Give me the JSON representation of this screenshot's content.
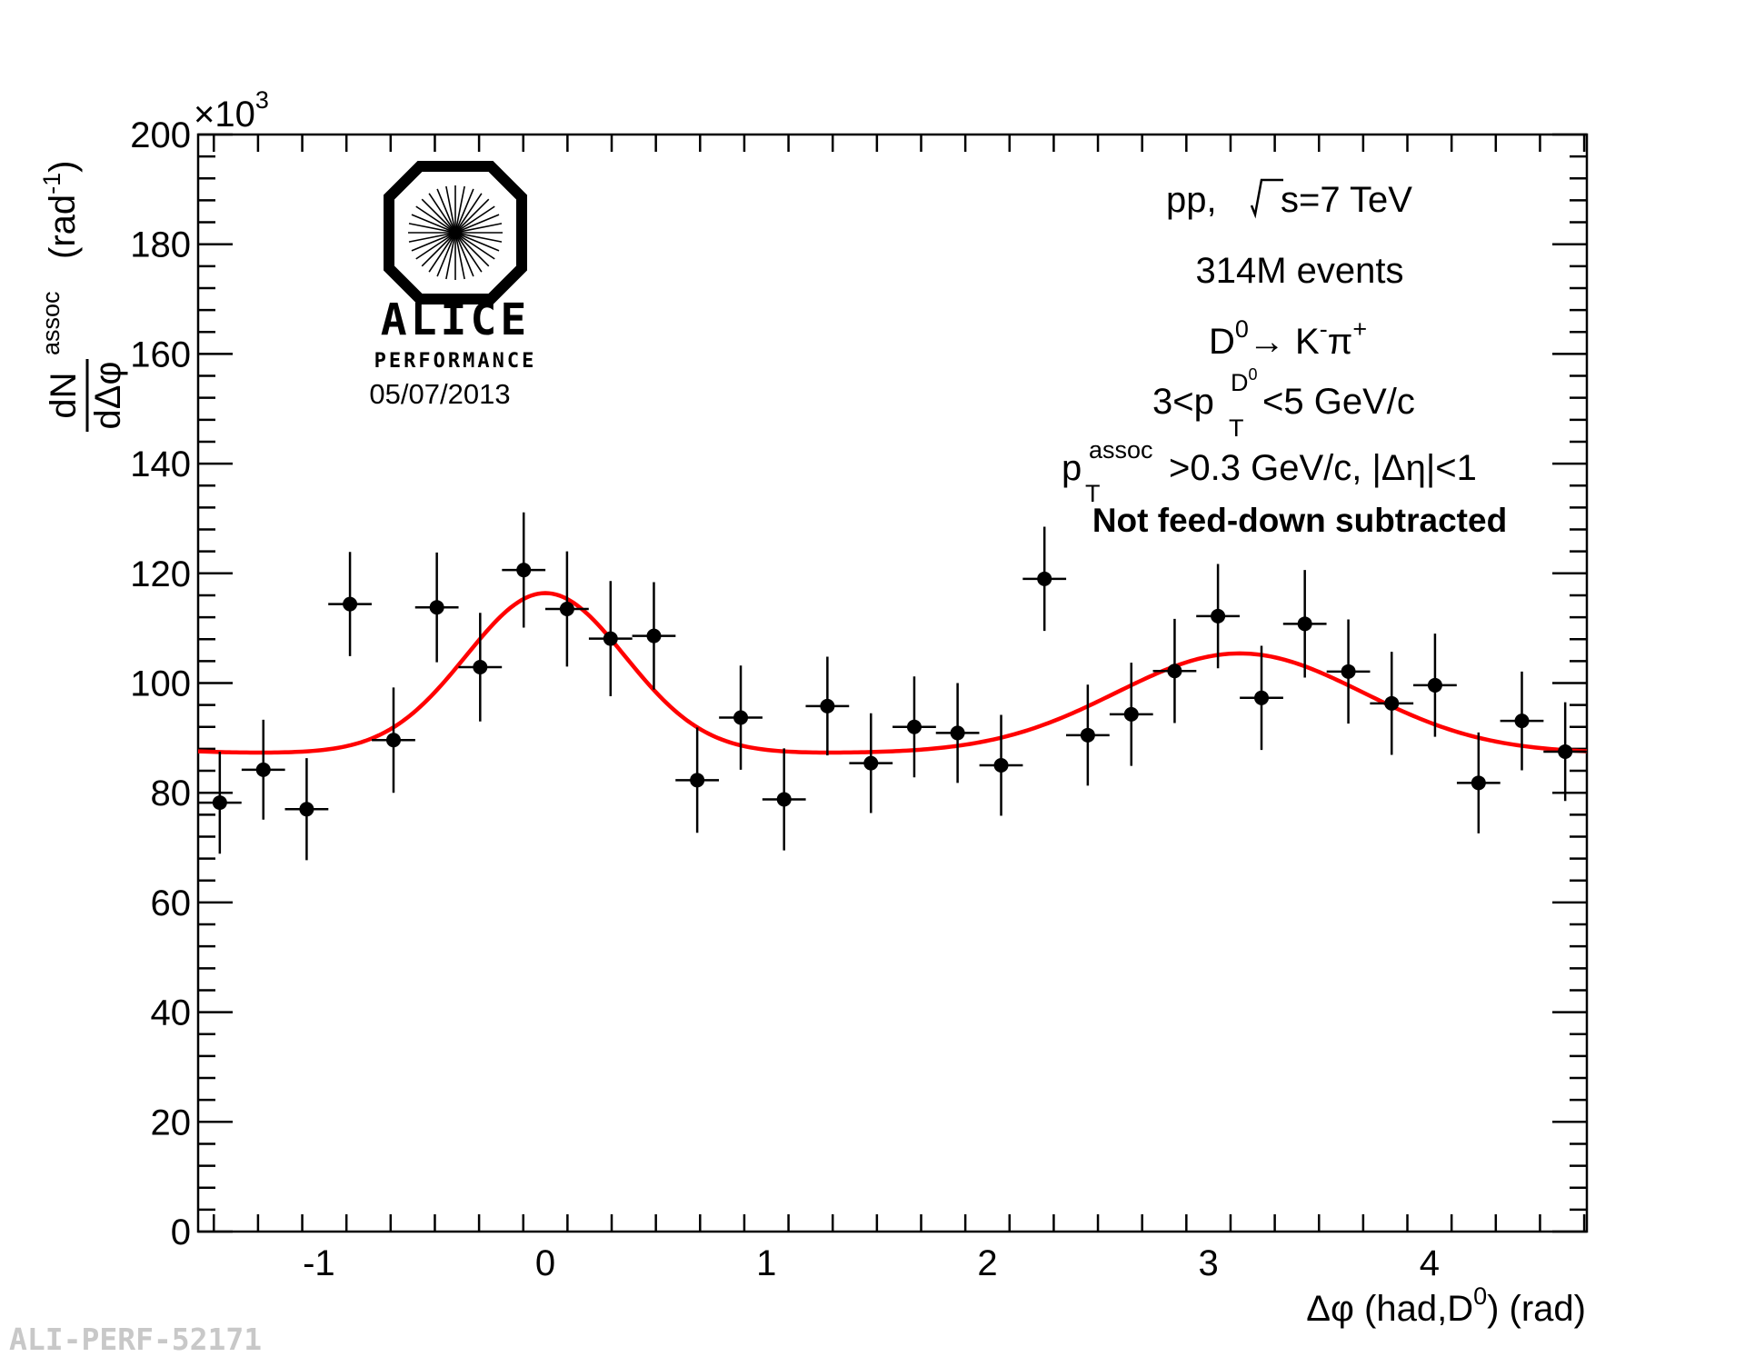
{
  "chart_data": {
    "type": "scatter",
    "x_multiplier_label": "×10",
    "x_multiplier_exp": "3",
    "xlim": [
      -1.571,
      4.712
    ],
    "ylim": [
      0,
      200
    ],
    "x_ticks": [
      -1,
      0,
      1,
      2,
      3,
      4
    ],
    "x_tick_labels": [
      "-1",
      "0",
      "1",
      "2",
      "3",
      "4"
    ],
    "y_ticks": [
      0,
      20,
      40,
      60,
      80,
      100,
      120,
      140,
      160,
      180,
      200
    ],
    "y_tick_labels": [
      "0",
      "20",
      "40",
      "60",
      "80",
      "100",
      "120",
      "140",
      "160",
      "180",
      "200"
    ],
    "xlabel": {
      "pre": "Δφ (had,D",
      "sup": "0",
      "post": ") (rad)"
    },
    "ylabel": {
      "frac_num": "dN",
      "frac_num_sup": "assoc",
      "frac_den": "dΔφ",
      "unit_pre": "(rad",
      "unit_sup": "-1",
      "unit_post": ")"
    },
    "bin_half_width": 0.0982,
    "series": [
      {
        "x": [
          -1.473,
          -1.276,
          -1.08,
          -0.884,
          -0.687,
          -0.491,
          -0.295,
          -0.098,
          0.098,
          0.295,
          0.491,
          0.687,
          0.884,
          1.08,
          1.276,
          1.473,
          1.669,
          1.865,
          2.062,
          2.258,
          2.454,
          2.651,
          2.847,
          3.043,
          3.24,
          3.436,
          3.633,
          3.829,
          4.025,
          4.222,
          4.418,
          4.614
        ],
        "y": [
          78.2,
          84.2,
          77.0,
          114.4,
          89.6,
          113.8,
          102.9,
          120.6,
          113.5,
          108.1,
          108.6,
          82.3,
          93.7,
          78.8,
          95.8,
          85.4,
          92.0,
          90.9,
          85.0,
          119.0,
          90.5,
          94.3,
          102.2,
          112.2,
          97.3,
          110.8,
          102.1,
          96.3,
          99.6,
          81.8,
          93.1,
          87.5
        ],
        "yerr": [
          9.3,
          9.1,
          9.3,
          9.5,
          9.6,
          10.0,
          9.9,
          10.5,
          10.5,
          10.5,
          9.8,
          9.6,
          9.5,
          9.3,
          9.0,
          9.1,
          9.2,
          9.1,
          9.2,
          9.5,
          9.2,
          9.4,
          9.5,
          9.5,
          9.5,
          9.8,
          9.5,
          9.4,
          9.4,
          9.2,
          9.0,
          9.0
        ]
      }
    ],
    "fit": {
      "color": "#ff0000",
      "baseline": 87.2,
      "near_amp": 29.2,
      "near_sigma": 0.36,
      "away_amp": 18.2,
      "away_sigma": 0.56
    },
    "annotations": {
      "system_pre": "pp, ",
      "system_post": "s=7 TeV",
      "events": "314M events",
      "decay_pre": "D",
      "decay_sup0": "0",
      "decay_arrow": "→ K",
      "decay_supm": "-",
      "decay_pi": "π",
      "decay_supp": "+",
      "pt_pre": "3<p",
      "pt_sup": "D",
      "pt_supsup": "0",
      "pt_sub": "T",
      "pt_post": "<5 GeV/c",
      "assoc_pre": "p",
      "assoc_sup": "assoc",
      "assoc_sub": "T",
      "assoc_post": ">0.3 GeV/c, |Δη|<1",
      "feeddown": "Not feed-down subtracted"
    },
    "logo": {
      "name": "ALICE",
      "sub": "PERFORMANCE",
      "date": "05/07/2013"
    },
    "figure_id": "ALI-PERF-52171"
  }
}
